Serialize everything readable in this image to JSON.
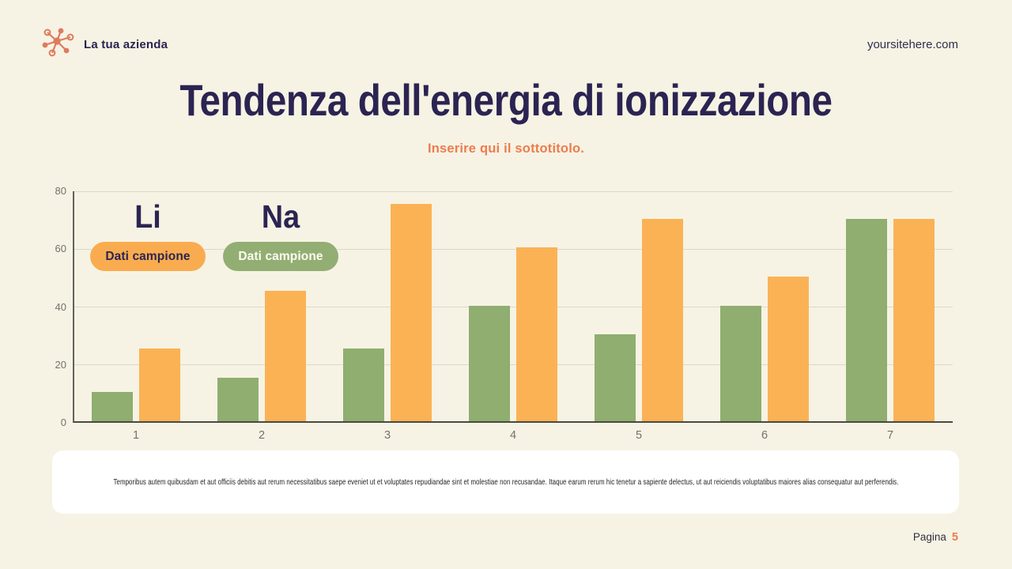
{
  "header": {
    "brand": "La tua azienda",
    "website": "yoursitehere.com"
  },
  "title": "Tendenza dell'energia di ionizzazione",
  "subtitle": "Inserire qui il sottotitolo.",
  "annotations": [
    {
      "label": "Li",
      "badge": "Dati campione",
      "badge_color": "#F9AC4F",
      "badge_text_color": "#2B2452"
    },
    {
      "label": "Na",
      "badge": "Dati campione",
      "badge_color": "#93AE73",
      "badge_text_color": "#FDFBF2"
    }
  ],
  "chart_data": {
    "type": "bar",
    "categories": [
      "1",
      "2",
      "3",
      "4",
      "5",
      "6",
      "7"
    ],
    "series": [
      {
        "name": "Na",
        "color": "#8FAE6F",
        "values": [
          10,
          15,
          25,
          40,
          30,
          40,
          70
        ]
      },
      {
        "name": "Li",
        "color": "#FBB255",
        "values": [
          25,
          45,
          75,
          60,
          70,
          50,
          70
        ]
      }
    ],
    "title": "",
    "xlabel": "",
    "ylabel": "",
    "ylim": [
      0,
      80
    ],
    "yticks": [
      0,
      20,
      40,
      60,
      80
    ],
    "grid": true,
    "legend_position": "none"
  },
  "body_text": "Temporibus autem quibusdam et aut officiis debitis aut rerum necessitatibus saepe eveniet ut et voluptates repudiandae sint et molestiae non recusandae. Itaque earum rerum hic tenetur a sapiente delectus, ut aut reiciendis voluptatibus maiores alias consequatur aut perferendis.",
  "footer": {
    "page_label": "Pagina",
    "page_number": "5"
  },
  "colors": {
    "background": "#F6F3E4",
    "navy": "#2B2452",
    "accent_orange": "#EE7C4D",
    "bar_green": "#8FAE6F",
    "bar_orange": "#FBB255",
    "card": "#FFFFFF",
    "gridline": "#DCD9CC",
    "logo_coral": "#DF7A5E"
  }
}
